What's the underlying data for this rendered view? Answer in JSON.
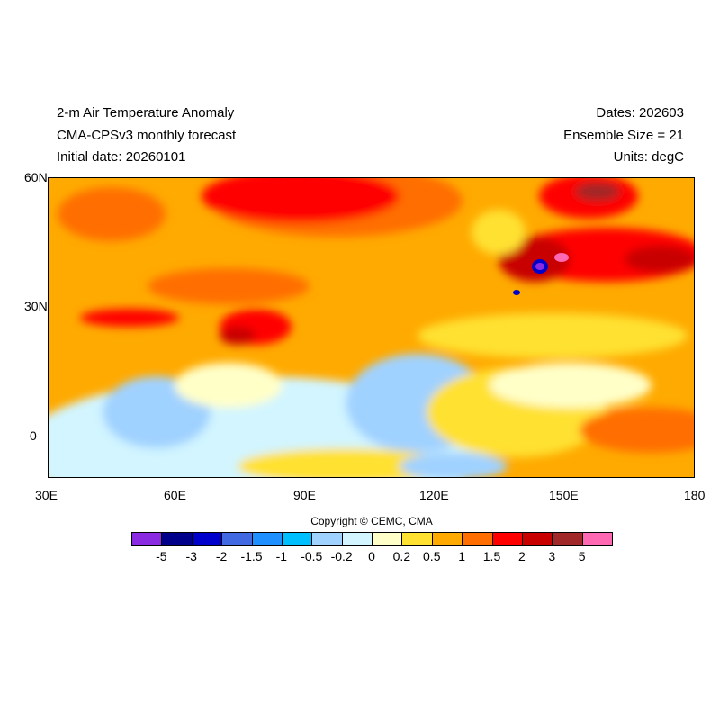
{
  "header": {
    "title": "2-m Air Temperature Anomaly",
    "subtitle": "CMA-CPSv3 monthly forecast",
    "initial_date": "Initial date: 20260101",
    "dates": "Dates: 202603",
    "ensemble": "Ensemble Size = 21",
    "units": "Units: degC"
  },
  "map": {
    "lat_ticks": [
      "60N",
      "30N",
      "0"
    ],
    "lon_ticks": [
      "30E",
      "60E",
      "90E",
      "120E",
      "150E",
      "180"
    ],
    "extent": {
      "lon": [
        30,
        180
      ],
      "lat": [
        -10,
        60
      ]
    }
  },
  "copyright": "Copyright © CEMC, CMA",
  "colorbar": {
    "colors": [
      "#8a2be2",
      "#00008b",
      "#0000cd",
      "#4169e1",
      "#1e90ff",
      "#00bfff",
      "#a0d2ff",
      "#d2f5ff",
      "#ffffc8",
      "#ffe132",
      "#ffaa00",
      "#ff6e00",
      "#ff0000",
      "#c80000",
      "#a02828",
      "#ff69b4"
    ],
    "labels": [
      "-5",
      "-3",
      "-2",
      "-1.5",
      "-1",
      "-0.5",
      "-0.2",
      "0",
      "0.2",
      "0.5",
      "1",
      "1.5",
      "2",
      "3",
      "5"
    ]
  }
}
